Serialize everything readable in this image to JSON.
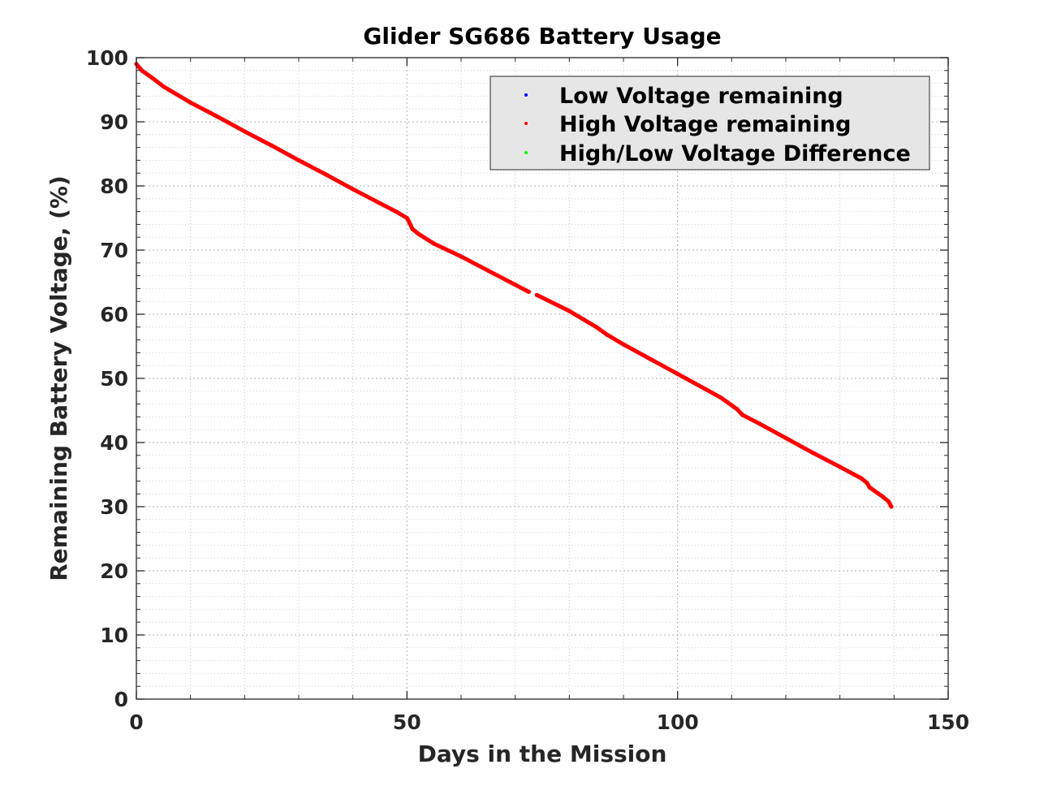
{
  "chart_data": {
    "type": "scatter",
    "title": "Glider SG686 Battery Usage",
    "xlabel": "Days in the Mission",
    "ylabel": "Remaining Battery Voltage, (%)",
    "xlim": [
      0,
      150
    ],
    "ylim": [
      0,
      100
    ],
    "xticks": [
      0,
      50,
      100,
      150
    ],
    "yticks": [
      0,
      10,
      20,
      30,
      40,
      50,
      60,
      70,
      80,
      90,
      100
    ],
    "x_minor_step": 10,
    "y_minor_step": 2,
    "grid": true,
    "legend_position": "top-right",
    "series": [
      {
        "name": "Low Voltage remaining",
        "color": "#0000ff",
        "x": [],
        "y": []
      },
      {
        "name": "High Voltage remaining",
        "color": "#ff0000",
        "x": [
          0,
          1,
          3,
          5,
          10,
          15,
          20,
          25,
          30,
          35,
          40,
          45,
          48,
          50,
          50.5,
          51,
          52,
          55,
          60,
          65,
          70,
          72.5,
          74,
          80,
          85,
          87,
          90,
          95,
          100,
          105,
          108,
          110,
          111,
          112,
          115,
          120,
          125,
          130,
          134,
          135,
          135.5,
          136,
          137,
          138,
          139,
          139.5
        ],
        "y": [
          99,
          98,
          96.8,
          95.5,
          93,
          90.8,
          88.5,
          86.3,
          84,
          81.8,
          79.5,
          77.3,
          76,
          75,
          74.2,
          73.3,
          72.6,
          71,
          69,
          66.8,
          64.6,
          63.5,
          63,
          60.5,
          58,
          56.8,
          55.3,
          53,
          50.7,
          48.4,
          47,
          45.8,
          45.2,
          44.3,
          43,
          40.7,
          38.4,
          36.2,
          34.4,
          33.7,
          33,
          32.7,
          32.1,
          31.5,
          30.8,
          30
        ]
      },
      {
        "name": "High/Low Voltage Difference",
        "color": "#00ff00",
        "x": [],
        "y": []
      }
    ]
  }
}
